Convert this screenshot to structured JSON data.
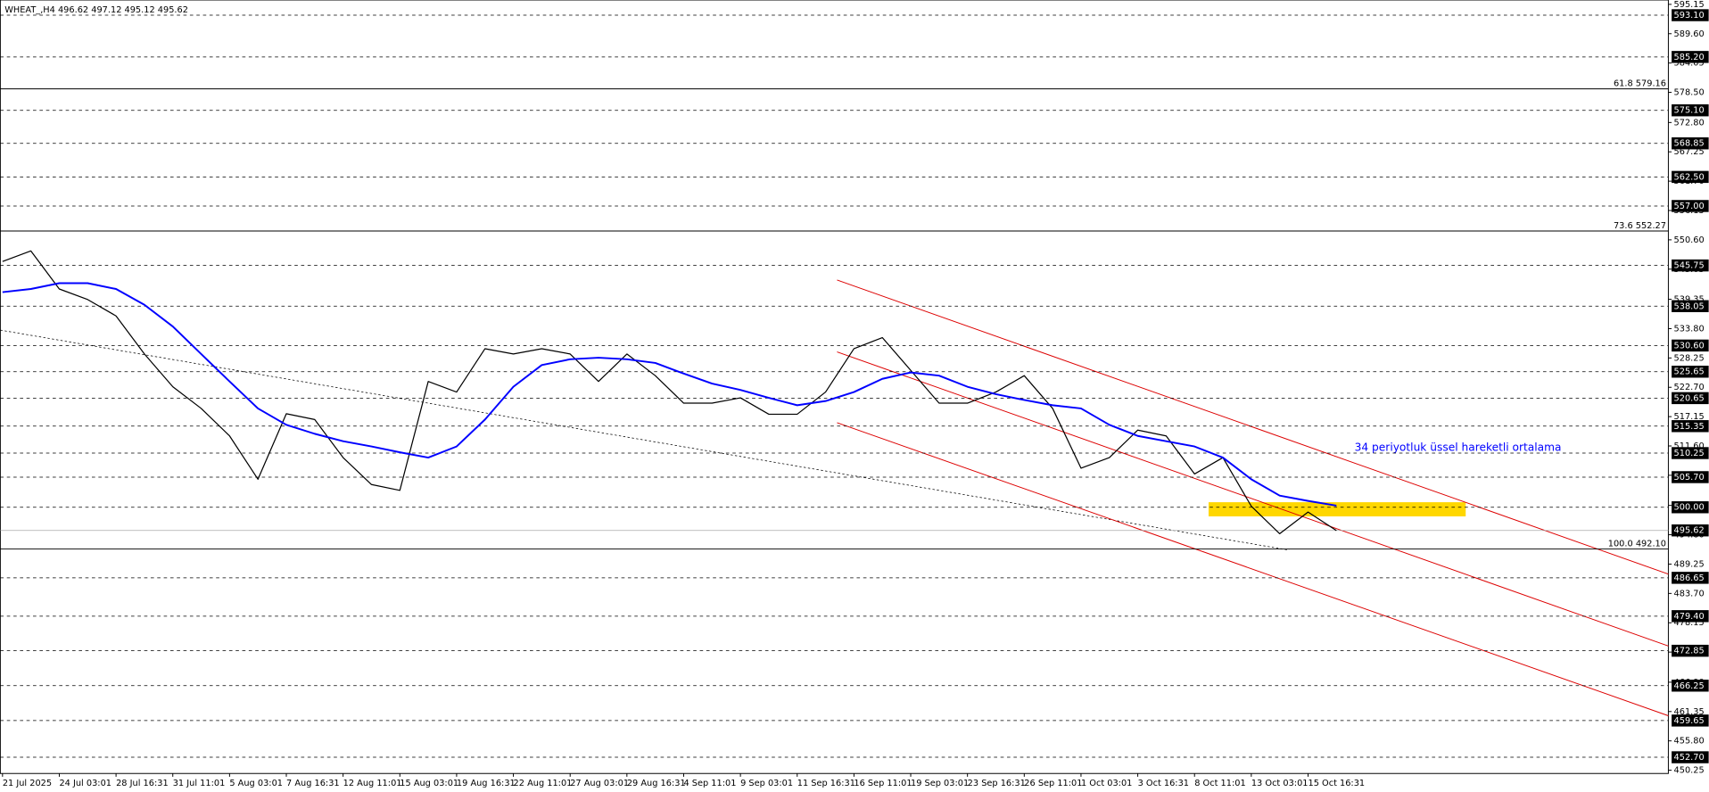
{
  "chart_data": {
    "type": "line",
    "title": "WHEAT_,H4  496.62 497.12 495.12 495.62",
    "categories": [
      "21 Jul 2025",
      null,
      "24 Jul 03:01",
      null,
      "28 Jul 16:31",
      null,
      "31 Jul 11:01",
      null,
      "5 Aug 03:01",
      null,
      "7 Aug 16:31",
      null,
      "12 Aug 11:01",
      null,
      "15 Aug 03:01",
      null,
      "19 Aug 16:31",
      null,
      "22 Aug 11:01",
      null,
      "27 Aug 03:01",
      null,
      "29 Aug 16:31",
      null,
      "4 Sep 11:01",
      null,
      "9 Sep 03:01",
      null,
      "11 Sep 16:31",
      null,
      "16 Sep 11:01",
      null,
      "19 Sep 03:01",
      null,
      "23 Sep 16:31",
      null,
      "26 Sep 11:01",
      null,
      "1 Oct 03:01",
      null,
      "3 Oct 16:31",
      null,
      "8 Oct 11:01",
      null,
      "13 Oct 03:01",
      null,
      "15 Oct 16:31",
      null
    ],
    "series": [
      {
        "color": "#000000",
        "values": [
          546.5,
          548.5,
          541.3,
          539.3,
          536.2,
          529,
          522.8,
          518.7,
          513.5,
          505.3,
          517.7,
          516.6,
          509.4,
          504.3,
          503.2,
          523.8,
          521.8,
          530,
          529,
          530,
          529,
          523.8,
          529,
          524.9,
          519.7,
          519.7,
          520.7,
          517.6,
          517.6,
          521.8,
          530,
          532.1,
          525.9,
          519.7,
          519.7,
          521.8,
          524.9,
          518.7,
          507.4,
          509.4,
          514.6,
          513.5,
          506.3,
          509.4,
          500.2,
          495,
          499.1,
          495.6
        ]
      },
      {
        "name": "34 periyotluk üssel hareketli ortalama",
        "color": "#0000ff",
        "values": [
          540.7,
          541.3,
          542.4,
          542.4,
          541.3,
          538.3,
          534.2,
          529,
          523.8,
          518.7,
          515.6,
          513.9,
          512.5,
          511.5,
          510.4,
          509.4,
          511.5,
          516.6,
          522.8,
          526.9,
          528,
          528.3,
          528,
          527.3,
          525.3,
          523.4,
          522.2,
          520.7,
          519.3,
          520.1,
          521.8,
          524.3,
          525.5,
          524.9,
          522.8,
          521.4,
          520.3,
          519.3,
          518.7,
          515.6,
          513.5,
          512.5,
          511.5,
          509.4,
          505.3,
          502.2,
          501.2,
          500.3
        ]
      }
    ],
    "ylim": [
      450.25,
      595.15
    ],
    "yticks": [
      {
        "value": 595.15,
        "label": "595.15"
      },
      {
        "value": 589.6,
        "label": "589.60"
      },
      {
        "value": 584.05,
        "label": "584.05"
      },
      {
        "value": 578.5,
        "label": "578.50"
      },
      {
        "value": 572.8,
        "label": "572.80"
      },
      {
        "value": 567.25,
        "label": "567.25"
      },
      {
        "value": 561.7,
        "label": "561.70"
      },
      {
        "value": 556.15,
        "label": "556.15"
      },
      {
        "value": 550.6,
        "label": "550.60"
      },
      {
        "value": 545.05,
        "label": "545.05"
      },
      {
        "value": 539.35,
        "label": "539.35"
      },
      {
        "value": 533.8,
        "label": "533.80"
      },
      {
        "value": 528.25,
        "label": "528.25"
      },
      {
        "value": 522.7,
        "label": "522.70"
      },
      {
        "value": 517.15,
        "label": "517.15"
      },
      {
        "value": 511.6,
        "label": "511.60"
      },
      {
        "value": 506.05,
        "label": "506.05"
      },
      {
        "value": 500.35,
        "label": "500.35"
      },
      {
        "value": 494.8,
        "label": "494.80"
      },
      {
        "value": 489.25,
        "label": "489.25"
      },
      {
        "value": 483.7,
        "label": "483.70"
      },
      {
        "value": 478.15,
        "label": "478.15"
      },
      {
        "value": 472.6,
        "label": "472.60"
      },
      {
        "value": 466.9,
        "label": "466.90"
      },
      {
        "value": 461.35,
        "label": "461.35"
      },
      {
        "value": 455.8,
        "label": "455.80"
      },
      {
        "value": 450.25,
        "label": "450.25"
      }
    ],
    "grid": false,
    "levels": [
      {
        "value": 593.1,
        "label": "593.10"
      },
      {
        "value": 585.2,
        "label": "585.20"
      },
      {
        "value": 575.1,
        "label": "575.10"
      },
      {
        "value": 568.85,
        "label": "568.85"
      },
      {
        "value": 562.5,
        "label": "562.50"
      },
      {
        "value": 557,
        "label": "557.00"
      },
      {
        "value": 545.75,
        "label": "545.75"
      },
      {
        "value": 538.05,
        "label": "538.05"
      },
      {
        "value": 530.6,
        "label": "530.60"
      },
      {
        "value": 525.65,
        "label": "525.65"
      },
      {
        "value": 520.65,
        "label": "520.65"
      },
      {
        "value": 515.35,
        "label": "515.35"
      },
      {
        "value": 510.25,
        "label": "510.25"
      },
      {
        "value": 505.7,
        "label": "505.70"
      },
      {
        "value": 500,
        "label": "500.00"
      },
      {
        "value": 486.65,
        "label": "486.65"
      },
      {
        "value": 479.4,
        "label": "479.40"
      },
      {
        "value": 472.85,
        "label": "472.85"
      },
      {
        "value": 466.25,
        "label": "466.25"
      },
      {
        "value": 459.65,
        "label": "459.65"
      },
      {
        "value": 452.7,
        "label": "452.70"
      }
    ],
    "fibo": [
      {
        "value": 579.16,
        "label": "61.8 579.16"
      },
      {
        "value": 552.27,
        "label": "73.6 552.27"
      },
      {
        "value": 492.1,
        "label": "100.0 492.10"
      }
    ],
    "current_price": {
      "value": 495.62,
      "label": "495.62"
    }
  }
}
